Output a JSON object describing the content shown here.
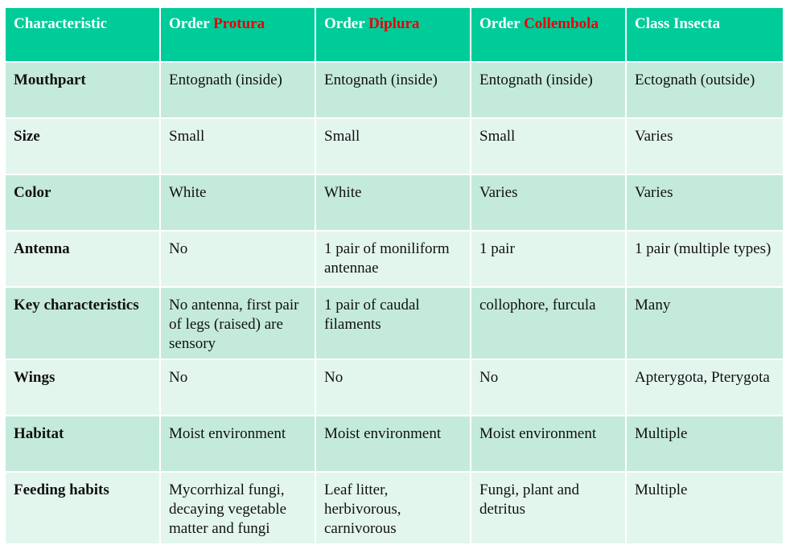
{
  "header": {
    "col0": "Characteristic",
    "col1_prefix": "Order ",
    "col1_highlight": "Protura",
    "col2_prefix": "Order ",
    "col2_highlight": "Diplura",
    "col3_prefix": "Order ",
    "col3_highlight": "Collembola",
    "col4": "Class Insecta"
  },
  "rows": [
    {
      "characteristic": "Mouthpart",
      "protura": "Entognath (inside)",
      "diplura": "Entognath (inside)",
      "collembola": "Entognath (inside)",
      "insecta": "Ectognath (outside)"
    },
    {
      "characteristic": "Size",
      "protura": "Small",
      "diplura": "Small",
      "collembola": "Small",
      "insecta": "Varies"
    },
    {
      "characteristic": "Color",
      "protura": "White",
      "diplura": "White",
      "collembola": "Varies",
      "insecta": "Varies"
    },
    {
      "characteristic": "Antenna",
      "protura": "No",
      "diplura": "1 pair of moniliform antennae",
      "collembola": "1 pair",
      "insecta": "1 pair (multiple types)"
    },
    {
      "characteristic": "Key characteristics",
      "protura": "No antenna, first pair of legs (raised) are sensory",
      "diplura": "1 pair of caudal filaments",
      "collembola": "collophore, furcula",
      "insecta": "Many"
    },
    {
      "characteristic": "Wings",
      "protura": "No",
      "diplura": "No",
      "collembola": "No",
      "insecta": "Apterygota, Pterygota"
    },
    {
      "characteristic": "Habitat",
      "protura": "Moist environment",
      "diplura": "Moist environment",
      "collembola": "Moist environment",
      "insecta": "Multiple"
    },
    {
      "characteristic": "Feeding habits",
      "protura": "Mycorrhizal fungi, decaying vegetable matter and fungi",
      "diplura": "Leaf litter, herbivorous, carnivorous",
      "collembola": "Fungi, plant and detritus",
      "insecta": "Multiple"
    }
  ],
  "colors": {
    "header_bg": "#00cc99",
    "header_text": "#ffffff",
    "highlight_text": "#e8000b",
    "row_dark": "#c4eadb",
    "row_light": "#e3f6ee"
  }
}
